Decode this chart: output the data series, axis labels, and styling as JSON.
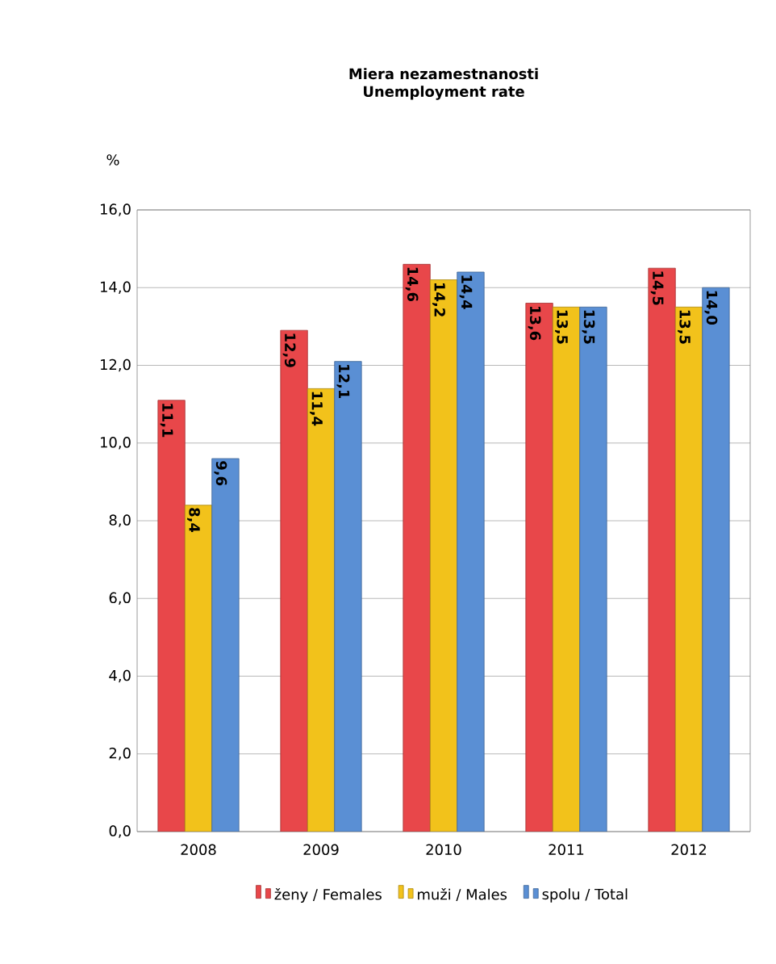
{
  "chart_data": {
    "type": "bar",
    "title": "Miera nezamestnanosti",
    "subtitle": "Unemployment rate",
    "ylabel": "%",
    "categories": [
      "2008",
      "2009",
      "2010",
      "2011",
      "2012"
    ],
    "series": [
      {
        "name": "ženy / Females",
        "color": "#e8474a",
        "values": [
          11.1,
          12.9,
          14.6,
          13.6,
          14.5
        ],
        "value_labels": [
          "11,1",
          "12,9",
          "14,6",
          "13,6",
          "14,5"
        ]
      },
      {
        "name": "muži / Males",
        "color": "#f2c21b",
        "values": [
          8.4,
          11.4,
          14.2,
          13.5,
          13.5
        ],
        "value_labels": [
          "8,4",
          "11,4",
          "14,2",
          "13,5",
          "13,5"
        ]
      },
      {
        "name": "spolu / Total",
        "color": "#5a8fd4",
        "values": [
          9.6,
          12.1,
          14.4,
          13.5,
          14.0
        ],
        "value_labels": [
          "9,6",
          "12,1",
          "14,4",
          "13,5",
          "14,0"
        ]
      }
    ],
    "ylim": [
      0,
      16
    ],
    "yticks": [
      {
        "value": 0,
        "label": "0,0"
      },
      {
        "value": 2,
        "label": "2,0"
      },
      {
        "value": 4,
        "label": "4,0"
      },
      {
        "value": 6,
        "label": "6,0"
      },
      {
        "value": 8,
        "label": "8,0"
      },
      {
        "value": 10,
        "label": "10,0"
      },
      {
        "value": 12,
        "label": "12,0"
      },
      {
        "value": 14,
        "label": "14,0"
      },
      {
        "value": 16,
        "label": "16,0"
      }
    ],
    "grid": "y",
    "legend": "bottom"
  }
}
